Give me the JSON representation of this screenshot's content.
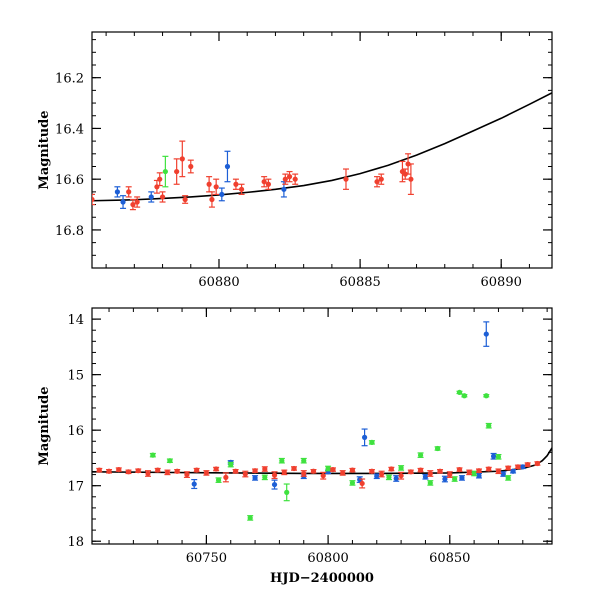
{
  "colors": {
    "blue": "#1d5fd6",
    "green": "#3fe23f",
    "red": "#f0402f",
    "model": "#000000"
  },
  "chart_data": [
    {
      "type": "scatter",
      "panel": "top",
      "xlabel": "",
      "ylabel": "Magnitude",
      "xlim": [
        60875.5,
        60891.8
      ],
      "ylim": [
        16.95,
        16.02
      ],
      "y_inverted": true,
      "x_ticks": [
        60880,
        60885,
        60890
      ],
      "x_tick_labels": [
        "60880",
        "60885",
        "60890"
      ],
      "y_ticks": [
        16.2,
        16.4,
        16.6,
        16.8
      ],
      "y_tick_labels": [
        "16.2",
        "16.4",
        "16.6",
        "16.8"
      ],
      "model_curve": {
        "name": "model",
        "x": [
          60875.5,
          60877,
          60878,
          60879,
          60880,
          60881,
          60882,
          60883,
          60884,
          60885,
          60886,
          60887,
          60888,
          60889,
          60890,
          60891,
          60891.8
        ],
        "y": [
          16.685,
          16.681,
          16.676,
          16.67,
          16.662,
          16.652,
          16.64,
          16.625,
          16.605,
          16.578,
          16.545,
          16.505,
          16.46,
          16.41,
          16.36,
          16.305,
          16.26
        ]
      },
      "series": [
        {
          "color": "blue",
          "x": [
            60876.4,
            60876.6,
            60877.6,
            60880.1,
            60880.3,
            60882.3
          ],
          "y": [
            16.65,
            16.69,
            16.67,
            16.66,
            16.55,
            16.64
          ],
          "err": [
            0.02,
            0.025,
            0.02,
            0.025,
            0.06,
            0.03
          ]
        },
        {
          "color": "green",
          "x": [
            60878.1
          ],
          "y": [
            16.57
          ],
          "err": [
            0.06
          ]
        },
        {
          "color": "red",
          "x": [
            60875.5,
            60876.8,
            60876.95,
            60877.1,
            60877.8,
            60877.9,
            60878.0,
            60878.5,
            60878.7,
            60878.8,
            60879.0,
            60879.65,
            60879.75,
            60879.9,
            60880.6,
            60880.8,
            60881.6,
            60881.75,
            60882.35,
            60882.5,
            60882.7,
            60884.5,
            60885.6,
            60885.75,
            60886.5,
            60886.7,
            60886.8,
            60886.6
          ],
          "y": [
            16.68,
            16.65,
            16.7,
            16.69,
            16.63,
            16.6,
            16.67,
            16.57,
            16.52,
            16.68,
            16.55,
            16.62,
            16.68,
            16.63,
            16.62,
            16.64,
            16.61,
            16.62,
            16.6,
            16.59,
            16.6,
            16.6,
            16.61,
            16.6,
            16.57,
            16.54,
            16.6,
            16.58
          ],
          "err": [
            0.02,
            0.02,
            0.02,
            0.02,
            0.025,
            0.025,
            0.02,
            0.05,
            0.07,
            0.015,
            0.025,
            0.03,
            0.03,
            0.03,
            0.02,
            0.02,
            0.02,
            0.02,
            0.02,
            0.02,
            0.02,
            0.04,
            0.02,
            0.02,
            0.04,
            0.04,
            0.06,
            0.02
          ]
        }
      ]
    },
    {
      "type": "scatter",
      "panel": "bottom",
      "xlabel": "HJD−2400000",
      "ylabel": "Magnitude",
      "xlim": [
        60703,
        60892
      ],
      "ylim": [
        18.05,
        13.8
      ],
      "y_inverted": true,
      "x_ticks": [
        60750,
        60800,
        60850
      ],
      "x_tick_labels": [
        "60750",
        "60800",
        "60850"
      ],
      "y_ticks": [
        14,
        15,
        16,
        17,
        18
      ],
      "y_tick_labels": [
        "14",
        "15",
        "16",
        "17",
        "18"
      ],
      "model_curve": {
        "name": "model",
        "x": [
          60703,
          60730,
          60760,
          60790,
          60820,
          60850,
          60870,
          60880,
          60885,
          60888,
          60890,
          60892
        ],
        "y": [
          16.75,
          16.76,
          16.77,
          16.78,
          16.78,
          16.77,
          16.74,
          16.69,
          16.63,
          16.55,
          16.46,
          16.32
        ]
      },
      "series": [
        {
          "color": "blue",
          "x": [
            60745,
            60760,
            60770,
            60778,
            60790,
            60800,
            60813,
            60815,
            60820,
            60828,
            60840,
            60848,
            60855,
            60862,
            60865,
            60868,
            60872,
            60876,
            60880
          ],
          "y": [
            16.97,
            16.58,
            16.86,
            16.98,
            16.83,
            16.75,
            16.89,
            16.13,
            16.83,
            16.87,
            16.84,
            16.88,
            16.86,
            16.82,
            14.27,
            16.47,
            16.79,
            16.74,
            16.66
          ],
          "err": [
            0.08,
            0.03,
            0.04,
            0.08,
            0.04,
            0.03,
            0.05,
            0.15,
            0.04,
            0.05,
            0.04,
            0.05,
            0.04,
            0.04,
            0.22,
            0.05,
            0.04,
            0.03,
            0.03
          ]
        },
        {
          "color": "green",
          "x": [
            60728,
            60735,
            60755,
            60760,
            60768,
            60774,
            60781,
            60783,
            60790,
            60800,
            60810,
            60818,
            60825,
            60830,
            60838,
            60842,
            60845,
            60852,
            60854,
            60856,
            60860,
            60865,
            60866,
            60870,
            60874
          ],
          "y": [
            16.45,
            16.55,
            16.9,
            16.62,
            17.58,
            16.85,
            16.55,
            17.12,
            16.55,
            16.69,
            16.95,
            16.22,
            16.85,
            16.68,
            16.45,
            16.95,
            16.33,
            16.88,
            15.32,
            15.38,
            16.78,
            15.38,
            15.92,
            16.48,
            16.86
          ],
          "err": [
            0.03,
            0.03,
            0.04,
            0.04,
            0.04,
            0.04,
            0.04,
            0.15,
            0.04,
            0.04,
            0.04,
            0.03,
            0.04,
            0.04,
            0.04,
            0.04,
            0.03,
            0.04,
            0.02,
            0.02,
            0.04,
            0.02,
            0.04,
            0.04,
            0.04
          ]
        },
        {
          "color": "red",
          "x": [
            60706,
            60710,
            60714,
            60718,
            60722,
            60726,
            60730,
            60734,
            60738,
            60742,
            60746,
            60750,
            60754,
            60758,
            60762,
            60766,
            60770,
            60774,
            60778,
            60782,
            60786,
            60790,
            60794,
            60798,
            60802,
            60806,
            60810,
            60814,
            60818,
            60822,
            60826,
            60830,
            60834,
            60838,
            60842,
            60846,
            60850,
            60854,
            60858,
            60862,
            60866,
            60870,
            60874,
            60878,
            60882,
            60886
          ],
          "y": [
            16.72,
            16.74,
            16.71,
            16.75,
            16.73,
            16.78,
            16.72,
            16.76,
            16.74,
            16.8,
            16.72,
            16.77,
            16.7,
            16.85,
            16.74,
            16.79,
            16.73,
            16.7,
            16.81,
            16.76,
            16.69,
            16.78,
            16.74,
            16.82,
            16.71,
            16.77,
            16.72,
            16.96,
            16.74,
            16.79,
            16.7,
            16.82,
            16.75,
            16.72,
            16.78,
            16.74,
            16.8,
            16.71,
            16.76,
            16.73,
            16.7,
            16.74,
            16.68,
            16.66,
            16.62,
            16.6
          ],
          "err": [
            0.03,
            0.03,
            0.03,
            0.03,
            0.03,
            0.05,
            0.03,
            0.04,
            0.03,
            0.05,
            0.03,
            0.04,
            0.03,
            0.08,
            0.03,
            0.05,
            0.03,
            0.04,
            0.06,
            0.04,
            0.03,
            0.05,
            0.03,
            0.06,
            0.03,
            0.04,
            0.03,
            0.08,
            0.03,
            0.05,
            0.03,
            0.06,
            0.03,
            0.03,
            0.05,
            0.03,
            0.05,
            0.03,
            0.04,
            0.03,
            0.03,
            0.04,
            0.03,
            0.03,
            0.03,
            0.03
          ]
        }
      ]
    }
  ]
}
